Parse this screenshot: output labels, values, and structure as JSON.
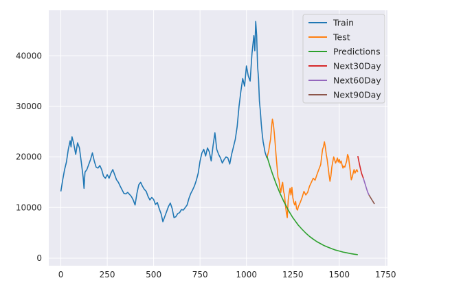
{
  "chart_data": {
    "type": "line",
    "title": "",
    "xlabel": "",
    "ylabel": "",
    "xlim": [
      -65,
      1760
    ],
    "ylim": [
      -1500,
      49000
    ],
    "xticks": [
      0,
      250,
      500,
      750,
      1000,
      1250,
      1500,
      1750
    ],
    "yticks": [
      0,
      10000,
      20000,
      30000,
      40000
    ],
    "grid": true,
    "background": "#eaeaf2",
    "legend_position": "top-right",
    "series": [
      {
        "name": "Train",
        "color": "#1f77b4",
        "points": [
          [
            0,
            13200
          ],
          [
            10,
            15500
          ],
          [
            20,
            17500
          ],
          [
            30,
            19000
          ],
          [
            40,
            21500
          ],
          [
            50,
            23200
          ],
          [
            55,
            22000
          ],
          [
            60,
            24000
          ],
          [
            70,
            22500
          ],
          [
            80,
            20500
          ],
          [
            90,
            22800
          ],
          [
            100,
            21800
          ],
          [
            110,
            19000
          ],
          [
            120,
            16000
          ],
          [
            125,
            13800
          ],
          [
            130,
            17000
          ],
          [
            140,
            17500
          ],
          [
            150,
            18500
          ],
          [
            160,
            19500
          ],
          [
            170,
            20800
          ],
          [
            180,
            19200
          ],
          [
            190,
            18000
          ],
          [
            200,
            17800
          ],
          [
            210,
            18300
          ],
          [
            220,
            17500
          ],
          [
            230,
            16200
          ],
          [
            240,
            15800
          ],
          [
            250,
            16500
          ],
          [
            260,
            15800
          ],
          [
            270,
            16800
          ],
          [
            280,
            17500
          ],
          [
            290,
            16500
          ],
          [
            300,
            15500
          ],
          [
            310,
            15000
          ],
          [
            320,
            14200
          ],
          [
            330,
            13500
          ],
          [
            340,
            12800
          ],
          [
            350,
            12700
          ],
          [
            360,
            13000
          ],
          [
            370,
            12600
          ],
          [
            380,
            12200
          ],
          [
            390,
            11500
          ],
          [
            400,
            10500
          ],
          [
            410,
            12800
          ],
          [
            420,
            14500
          ],
          [
            430,
            15000
          ],
          [
            440,
            14200
          ],
          [
            450,
            13600
          ],
          [
            460,
            13200
          ],
          [
            470,
            12200
          ],
          [
            480,
            11500
          ],
          [
            490,
            12000
          ],
          [
            500,
            11600
          ],
          [
            510,
            10600
          ],
          [
            520,
            11000
          ],
          [
            530,
            9800
          ],
          [
            540,
            8800
          ],
          [
            550,
            7200
          ],
          [
            560,
            8200
          ],
          [
            570,
            9200
          ],
          [
            580,
            10200
          ],
          [
            590,
            10900
          ],
          [
            600,
            9800
          ],
          [
            610,
            8000
          ],
          [
            620,
            8200
          ],
          [
            630,
            8800
          ],
          [
            640,
            9000
          ],
          [
            650,
            9600
          ],
          [
            660,
            9500
          ],
          [
            670,
            10000
          ],
          [
            680,
            10500
          ],
          [
            690,
            11800
          ],
          [
            700,
            12800
          ],
          [
            710,
            13500
          ],
          [
            720,
            14300
          ],
          [
            730,
            15400
          ],
          [
            740,
            16800
          ],
          [
            750,
            19200
          ],
          [
            760,
            20800
          ],
          [
            770,
            21500
          ],
          [
            780,
            20200
          ],
          [
            790,
            21800
          ],
          [
            800,
            21000
          ],
          [
            810,
            19200
          ],
          [
            820,
            22200
          ],
          [
            830,
            24800
          ],
          [
            840,
            21500
          ],
          [
            850,
            20500
          ],
          [
            860,
            19800
          ],
          [
            870,
            18800
          ],
          [
            880,
            19500
          ],
          [
            890,
            20000
          ],
          [
            900,
            19800
          ],
          [
            910,
            18600
          ],
          [
            920,
            20500
          ],
          [
            930,
            22000
          ],
          [
            940,
            23500
          ],
          [
            950,
            26000
          ],
          [
            960,
            30000
          ],
          [
            970,
            33000
          ],
          [
            980,
            35500
          ],
          [
            990,
            34000
          ],
          [
            1000,
            38000
          ],
          [
            1010,
            36000
          ],
          [
            1020,
            35000
          ],
          [
            1030,
            40500
          ],
          [
            1040,
            44000
          ],
          [
            1045,
            41000
          ],
          [
            1050,
            46800
          ],
          [
            1055,
            44000
          ],
          [
            1060,
            38000
          ],
          [
            1065,
            35500
          ],
          [
            1070,
            31000
          ],
          [
            1075,
            29000
          ],
          [
            1080,
            26500
          ],
          [
            1085,
            24500
          ],
          [
            1090,
            23000
          ],
          [
            1095,
            22000
          ],
          [
            1100,
            21000
          ],
          [
            1110,
            19800
          ]
        ]
      },
      {
        "name": "Test",
        "color": "#ff7f0e",
        "points": [
          [
            1110,
            19800
          ],
          [
            1115,
            20500
          ],
          [
            1120,
            21200
          ],
          [
            1125,
            22500
          ],
          [
            1130,
            23500
          ],
          [
            1135,
            25800
          ],
          [
            1140,
            27500
          ],
          [
            1145,
            26500
          ],
          [
            1150,
            24800
          ],
          [
            1155,
            22500
          ],
          [
            1160,
            20200
          ],
          [
            1165,
            18000
          ],
          [
            1170,
            16000
          ],
          [
            1175,
            15500
          ],
          [
            1180,
            14000
          ],
          [
            1185,
            13000
          ],
          [
            1190,
            14200
          ],
          [
            1195,
            15000
          ],
          [
            1200,
            13200
          ],
          [
            1205,
            12500
          ],
          [
            1210,
            10500
          ],
          [
            1215,
            9000
          ],
          [
            1220,
            8000
          ],
          [
            1225,
            11500
          ],
          [
            1230,
            12800
          ],
          [
            1235,
            13800
          ],
          [
            1240,
            12500
          ],
          [
            1245,
            14000
          ],
          [
            1250,
            12000
          ],
          [
            1255,
            11000
          ],
          [
            1260,
            10500
          ],
          [
            1265,
            11200
          ],
          [
            1270,
            9800
          ],
          [
            1275,
            9500
          ],
          [
            1280,
            10200
          ],
          [
            1290,
            11000
          ],
          [
            1300,
            12000
          ],
          [
            1310,
            13200
          ],
          [
            1320,
            12500
          ],
          [
            1330,
            13000
          ],
          [
            1340,
            14200
          ],
          [
            1350,
            15000
          ],
          [
            1360,
            15800
          ],
          [
            1370,
            15400
          ],
          [
            1380,
            16500
          ],
          [
            1390,
            17500
          ],
          [
            1400,
            18500
          ],
          [
            1405,
            20000
          ],
          [
            1410,
            21500
          ],
          [
            1415,
            22000
          ],
          [
            1420,
            23000
          ],
          [
            1425,
            22000
          ],
          [
            1430,
            20500
          ],
          [
            1435,
            19500
          ],
          [
            1440,
            18000
          ],
          [
            1445,
            16500
          ],
          [
            1450,
            15200
          ],
          [
            1455,
            16200
          ],
          [
            1460,
            18000
          ],
          [
            1465,
            19000
          ],
          [
            1470,
            20000
          ],
          [
            1475,
            19500
          ],
          [
            1480,
            18800
          ],
          [
            1485,
            19200
          ],
          [
            1490,
            19800
          ],
          [
            1495,
            19000
          ],
          [
            1500,
            19500
          ],
          [
            1505,
            18800
          ],
          [
            1510,
            19200
          ],
          [
            1515,
            18500
          ],
          [
            1520,
            17800
          ],
          [
            1525,
            18200
          ],
          [
            1530,
            18000
          ],
          [
            1540,
            19200
          ],
          [
            1545,
            20500
          ],
          [
            1550,
            20000
          ],
          [
            1555,
            18500
          ],
          [
            1560,
            17000
          ],
          [
            1565,
            15500
          ],
          [
            1570,
            16000
          ],
          [
            1575,
            16800
          ],
          [
            1580,
            17500
          ],
          [
            1585,
            16800
          ],
          [
            1590,
            17200
          ],
          [
            1595,
            17500
          ],
          [
            1600,
            17000
          ]
        ]
      },
      {
        "name": "Predictions",
        "color": "#2ca02c",
        "points": [
          [
            1110,
            20200
          ],
          [
            1120,
            19000
          ],
          [
            1130,
            17800
          ],
          [
            1140,
            16700
          ],
          [
            1150,
            15700
          ],
          [
            1160,
            14700
          ],
          [
            1170,
            13800
          ],
          [
            1180,
            12900
          ],
          [
            1190,
            12100
          ],
          [
            1200,
            11300
          ],
          [
            1210,
            10600
          ],
          [
            1220,
            9900
          ],
          [
            1230,
            9200
          ],
          [
            1240,
            8600
          ],
          [
            1250,
            8000
          ],
          [
            1260,
            7500
          ],
          [
            1270,
            7000
          ],
          [
            1280,
            6500
          ],
          [
            1290,
            6100
          ],
          [
            1300,
            5700
          ],
          [
            1320,
            4950
          ],
          [
            1340,
            4300
          ],
          [
            1360,
            3750
          ],
          [
            1380,
            3250
          ],
          [
            1400,
            2850
          ],
          [
            1420,
            2450
          ],
          [
            1440,
            2150
          ],
          [
            1460,
            1850
          ],
          [
            1480,
            1600
          ],
          [
            1500,
            1400
          ],
          [
            1520,
            1200
          ],
          [
            1540,
            1050
          ],
          [
            1560,
            900
          ],
          [
            1580,
            780
          ],
          [
            1600,
            680
          ]
        ]
      },
      {
        "name": "Next30Day",
        "color": "#d62728",
        "points": [
          [
            1600,
            20200
          ],
          [
            1605,
            19300
          ],
          [
            1610,
            18400
          ],
          [
            1615,
            17600
          ],
          [
            1620,
            16800
          ],
          [
            1625,
            16300
          ],
          [
            1630,
            15800
          ]
        ]
      },
      {
        "name": "Next60Day",
        "color": "#9467bd",
        "points": [
          [
            1630,
            15800
          ],
          [
            1635,
            15200
          ],
          [
            1640,
            14600
          ],
          [
            1645,
            14000
          ],
          [
            1650,
            13400
          ],
          [
            1655,
            12900
          ],
          [
            1660,
            12500
          ]
        ]
      },
      {
        "name": "Next90Day",
        "color": "#8c564b",
        "points": [
          [
            1660,
            12500
          ],
          [
            1665,
            12200
          ],
          [
            1670,
            11900
          ],
          [
            1675,
            11600
          ],
          [
            1680,
            11300
          ],
          [
            1685,
            11000
          ],
          [
            1690,
            10700
          ]
        ]
      }
    ]
  }
}
